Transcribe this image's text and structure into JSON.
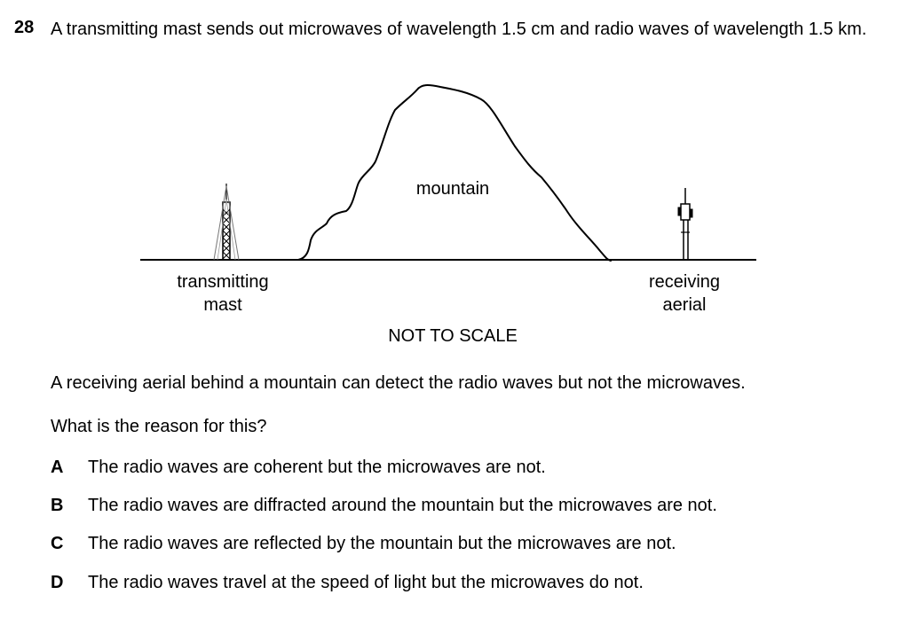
{
  "question": {
    "number": "28",
    "stem": "A transmitting mast sends out microwaves of wavelength 1.5 cm and radio waves of wavelength 1.5 km."
  },
  "diagram": {
    "mountain_label": "mountain",
    "mast_label_line1": "transmitting",
    "mast_label_line2": "mast",
    "aerial_label_line1": "receiving",
    "aerial_label_line2": "aerial",
    "scale_note": "NOT TO SCALE"
  },
  "context": "A receiving aerial behind a mountain can detect the radio waves but not the microwaves.",
  "prompt": "What is the reason for this?",
  "options": [
    {
      "letter": "A",
      "text": "The radio waves are coherent but the microwaves are not."
    },
    {
      "letter": "B",
      "text": "The radio waves are diffracted around the mountain but the microwaves are not."
    },
    {
      "letter": "C",
      "text": "The radio waves are reflected by the mountain but the microwaves are not."
    },
    {
      "letter": "D",
      "text": "The radio waves travel at the speed of light but the microwaves do not."
    }
  ]
}
